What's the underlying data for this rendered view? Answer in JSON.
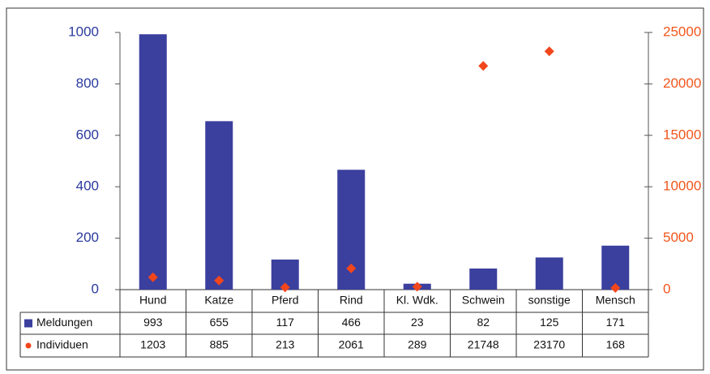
{
  "chart_data": {
    "type": "bar",
    "categories": [
      "Hund",
      "Katze",
      "Pferd",
      "Rind",
      "Kl. Wdk.",
      "Schwein",
      "sonstige",
      "Mensch"
    ],
    "series": [
      {
        "name": "Meldungen",
        "color": "#3b3f9e",
        "type": "bar",
        "values": [
          993,
          655,
          117,
          466,
          23,
          82,
          125,
          171
        ]
      },
      {
        "name": "Individuen",
        "color": "#f2461c",
        "type": "scatter",
        "axis": "y2",
        "values": [
          1203,
          885,
          213,
          2061,
          289,
          21748,
          23170,
          168
        ]
      }
    ],
    "ylim": [
      0,
      1000
    ],
    "yticks": [
      0,
      200,
      400,
      600,
      800,
      1000
    ],
    "y2lim": [
      0,
      25000
    ],
    "y2ticks": [
      0,
      5000,
      10000,
      15000,
      20000,
      25000
    ],
    "grid": false
  }
}
